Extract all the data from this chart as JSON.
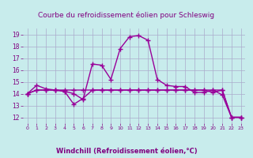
{
  "title": "Courbe du refroidissement éolien pour Schleswig",
  "xlabel": "Windchill (Refroidissement éolien,°C)",
  "bg_color": "#c8ecec",
  "line_color": "#990099",
  "grid_color": "#aaaacc",
  "ylim": [
    11.5,
    19.5
  ],
  "xlim": [
    -0.5,
    23.5
  ],
  "yticks": [
    12,
    13,
    14,
    15,
    16,
    17,
    18,
    19
  ],
  "xticks": [
    0,
    1,
    2,
    3,
    4,
    5,
    6,
    7,
    8,
    9,
    10,
    11,
    12,
    13,
    14,
    15,
    16,
    17,
    18,
    19,
    20,
    21,
    22,
    23
  ],
  "line1_x": [
    0,
    1,
    2,
    3,
    4,
    5,
    6,
    7,
    8,
    9,
    10,
    11,
    12,
    13,
    14,
    15,
    16,
    17,
    18,
    19,
    20,
    21,
    22,
    23
  ],
  "line1_y": [
    14.0,
    14.7,
    14.4,
    14.3,
    14.2,
    14.0,
    13.5,
    16.5,
    16.4,
    15.2,
    17.8,
    18.8,
    18.9,
    18.5,
    15.2,
    14.7,
    14.6,
    14.6,
    14.1,
    14.1,
    14.3,
    13.9,
    12.0,
    12.0
  ],
  "line2_x": [
    0,
    1,
    2,
    3,
    4,
    5,
    6,
    7,
    8,
    9,
    10,
    11,
    12,
    13,
    14,
    15,
    16,
    17,
    18,
    19,
    20,
    21,
    22,
    23
  ],
  "line2_y": [
    14.0,
    14.3,
    14.3,
    14.3,
    14.3,
    14.3,
    14.3,
    14.3,
    14.3,
    14.3,
    14.3,
    14.3,
    14.3,
    14.3,
    14.3,
    14.3,
    14.3,
    14.3,
    14.3,
    14.3,
    14.3,
    14.3,
    12.0,
    12.0
  ],
  "line3_x": [
    0,
    1,
    2,
    3,
    4,
    5,
    6,
    7,
    8,
    9,
    10,
    11,
    12,
    13,
    14,
    15,
    16,
    17,
    18,
    19,
    20,
    21,
    22,
    23
  ],
  "line3_y": [
    14.0,
    14.3,
    14.3,
    14.3,
    14.2,
    13.1,
    13.6,
    14.3,
    14.3,
    14.3,
    14.3,
    14.3,
    14.3,
    14.3,
    14.3,
    14.3,
    14.3,
    14.3,
    14.3,
    14.3,
    14.1,
    14.3,
    12.0,
    12.0
  ],
  "title_color": "#800080",
  "xlabel_color": "#800080",
  "tick_color": "#800080",
  "marker": "+",
  "markersize": 4,
  "linewidth": 1.0
}
